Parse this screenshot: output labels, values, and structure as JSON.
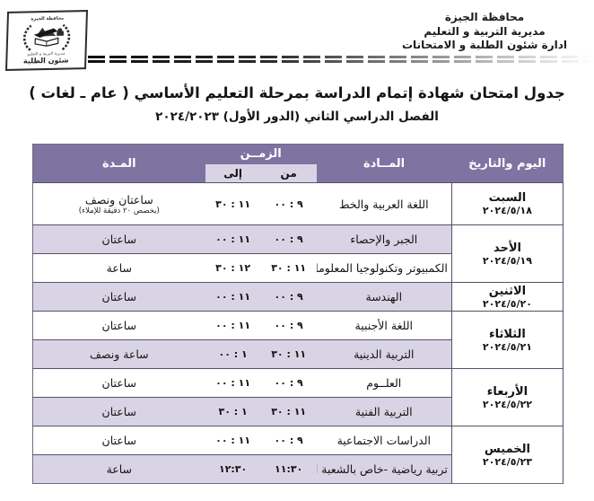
{
  "colors": {
    "header_purple": "#7f73a2",
    "row_lavender": "#d9d4e5",
    "row_separator": "#56506a",
    "text": "#141414"
  },
  "letterhead": {
    "org_lines": [
      "محافظة الجيزة",
      "مديرية التربية و التعليم",
      "ادارة شئون الطلبة و الامتحانات"
    ],
    "logo": {
      "top_text": "محافظة الجيزة",
      "middle_text": "مديرية التربية و التعليم",
      "bottom_text": "شئون الطلبة",
      "emblem_icon": "wreath-pyramids-book-emblem"
    }
  },
  "title": {
    "line1": "جدول امتحان شهادة إتمام الدراسة  بمرحلة التعليم الأساسي ( عام ـ لغات )",
    "line2": "الفصل الدراسي الثاني (الدور الأول)  ٢٠٢٤/٢٠٢٣"
  },
  "table": {
    "headers": {
      "day": "اليوم والتاريخ",
      "subject": "المــادة",
      "time": "الزمــن",
      "from": "من",
      "to": "إلى",
      "duration": "المـدة"
    },
    "days": [
      {
        "name": "السبت",
        "date": "٢٠٢٤/٥/١٨",
        "rows": [
          {
            "subject": "اللغة العربية والخط",
            "from": "٩ : ٠٠",
            "to": "١١ : ٣٠",
            "duration": "ساعتان ونصف",
            "note": "(يخصص ٢٠ دقيقة للإملاء)",
            "shade": false
          }
        ]
      },
      {
        "name": "الأحد",
        "date": "٢٠٢٤/٥/١٩",
        "rows": [
          {
            "subject": "الجبر والإحصاء",
            "from": "٩ : ٠٠",
            "to": "١١ : ٠٠",
            "duration": "ساعتان",
            "shade": true
          },
          {
            "subject": "الكمبيوتر وتكنولوجيا المعلومات",
            "from": "١١ : ٣٠",
            "to": "١٢ : ٣٠",
            "duration": "ساعة",
            "shade": false
          }
        ]
      },
      {
        "name": "الاثنين",
        "date": "٢٠٢٤/٥/٢٠",
        "rows": [
          {
            "subject": "الهندسة",
            "from": "٩ : ٠٠",
            "to": "١١ : ٠٠",
            "duration": "ساعتان",
            "shade": true
          }
        ]
      },
      {
        "name": "الثلاثاء",
        "date": "٢٠٢٤/٥/٢١",
        "rows": [
          {
            "subject": "اللغة الأجنبية",
            "from": "٩ : ٠٠",
            "to": "١١ : ٠٠",
            "duration": "ساعتان",
            "shade": false
          },
          {
            "subject": "التربية الدينية",
            "from": "١١ : ٣٠",
            "to": "١ : ٠٠",
            "duration": "ساعة ونصف",
            "shade": true
          }
        ]
      },
      {
        "name": "الأربعاء",
        "date": "٢٠٢٤/٥/٢٢",
        "rows": [
          {
            "subject": "العلــوم",
            "from": "٩ : ٠٠",
            "to": "١١ : ٠٠",
            "duration": "ساعتان",
            "shade": false
          },
          {
            "subject": "التربية الفنية",
            "from": "١١ : ٣٠",
            "to": "١ : ٣٠",
            "duration": "ساعتان",
            "shade": true
          }
        ]
      },
      {
        "name": "الخميس",
        "date": "٢٠٢٤/٥/٢٣",
        "rows": [
          {
            "subject": "الدراسات الاجتماعية",
            "from": "٩ : ٠٠",
            "to": "١١ : ٠٠",
            "duration": "ساعتان",
            "shade": false
          },
          {
            "subject": "تربية رياضية -خاص بالشعبة الرياضية",
            "from": "١١:٣٠",
            "to": "١٢:٣٠",
            "duration": "ساعة",
            "shade": true
          }
        ]
      }
    ]
  }
}
